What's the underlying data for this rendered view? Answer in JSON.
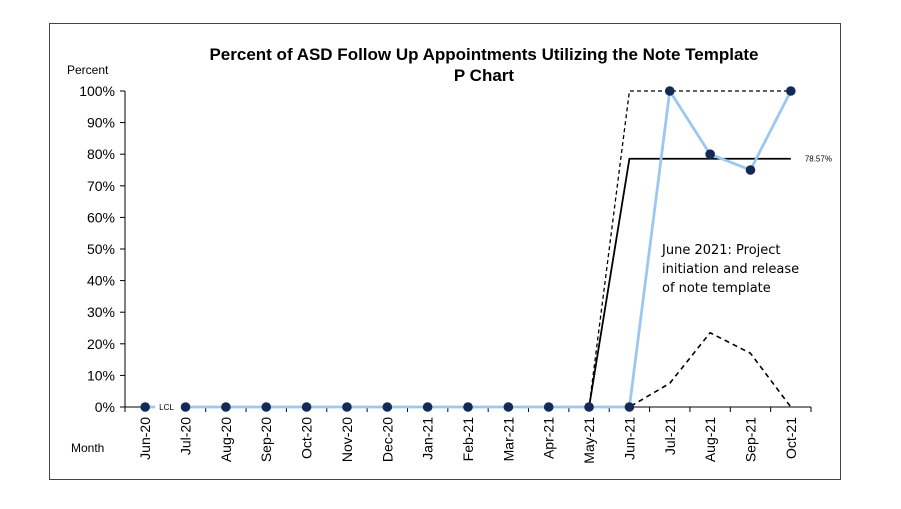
{
  "chart_data": {
    "type": "line",
    "title": "Percent of ASD Follow Up Appointments Utilizing the Note Template",
    "subtitle": "P Chart",
    "ylabel": "Percent",
    "xlabel": "Month",
    "ylim": [
      0,
      100
    ],
    "yticks": [
      "0%",
      "10%",
      "20%",
      "30%",
      "40%",
      "50%",
      "60%",
      "70%",
      "80%",
      "90%",
      "100%"
    ],
    "categories": [
      "Jun-20",
      "Jul-20",
      "Aug-20",
      "Sep-20",
      "Oct-20",
      "Nov-20",
      "Dec-20",
      "Jan-21",
      "Feb-21",
      "Mar-21",
      "Apr-21",
      "May-21",
      "Jun-21",
      "Jul-21",
      "Aug-21",
      "Sep-21",
      "Oct-21"
    ],
    "series": [
      {
        "name": "",
        "style": "data",
        "values": [
          0,
          0,
          0,
          0,
          0,
          0,
          0,
          0,
          0,
          0,
          0,
          0,
          0,
          100,
          80,
          75,
          100
        ],
        "color": "#9cc8ef",
        "marker_color": "#132a57"
      },
      {
        "name": "",
        "style": "center",
        "values": [
          0,
          0,
          0,
          0,
          0,
          0,
          0,
          0,
          0,
          0,
          0,
          0,
          78.57,
          78.57,
          78.57,
          78.57,
          78.57
        ],
        "color": "#000000"
      },
      {
        "name": "",
        "style": "ucl",
        "values": [
          0,
          0,
          0,
          0,
          0,
          0,
          0,
          0,
          0,
          0,
          0,
          0,
          100,
          100,
          100,
          100,
          100
        ],
        "color": "#000000"
      },
      {
        "name": "",
        "style": "lcl",
        "values": [
          0,
          0,
          0,
          0,
          0,
          0,
          0,
          0,
          0,
          0,
          0,
          0,
          0,
          7.5,
          23.5,
          17,
          0
        ],
        "color": "#000000"
      }
    ],
    "labels": {
      "center": "78.57%",
      "lcl": "LCL"
    },
    "annotation": [
      "June 2021: Project",
      "initiation and release",
      "of note template"
    ],
    "grid": false,
    "legend": "none"
  }
}
